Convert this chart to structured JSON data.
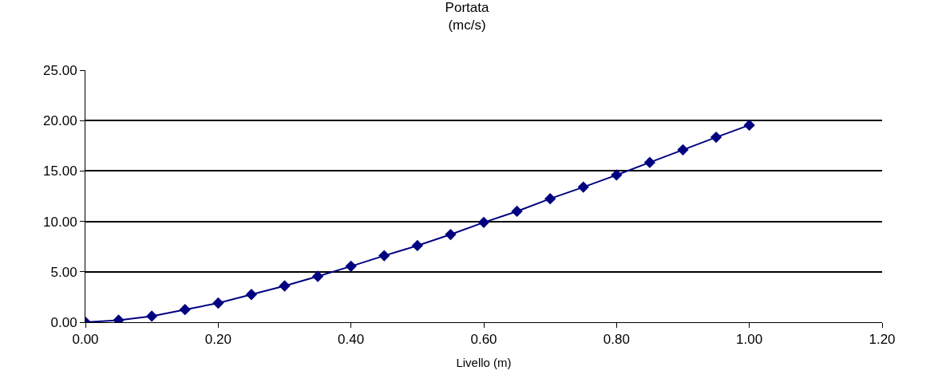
{
  "chart_data": {
    "type": "line",
    "title": "Portata",
    "subtitle": "(mc/s)",
    "xlabel": "Livello (m)",
    "x": [
      0,
      0.05,
      0.1,
      0.15,
      0.2,
      0.25,
      0.3,
      0.35,
      0.4,
      0.45,
      0.5,
      0.55,
      0.6,
      0.65,
      0.7,
      0.75,
      0.8,
      0.85,
      0.9,
      0.95,
      1.0
    ],
    "series": [
      {
        "color": "#000080",
        "values": [
          0,
          0.2,
          0.6,
          1.25,
          1.9,
          2.75,
          3.6,
          4.55,
          5.55,
          6.6,
          7.6,
          8.7,
          9.9,
          11.0,
          12.25,
          13.4,
          14.6,
          15.85,
          17.1,
          18.35,
          19.55
        ]
      }
    ],
    "xlim": [
      0,
      1.2
    ],
    "xticks": [
      {
        "value": 0,
        "label": "0.00"
      },
      {
        "value": 0.2,
        "label": "0.20"
      },
      {
        "value": 0.4,
        "label": "0.40"
      },
      {
        "value": 0.6,
        "label": "0.60"
      },
      {
        "value": 0.8,
        "label": "0.80"
      },
      {
        "value": 1.0,
        "label": "1.00"
      },
      {
        "value": 1.2,
        "label": "1.20"
      }
    ],
    "ylim": [
      0,
      25
    ],
    "yticks": [
      {
        "value": 0,
        "label": "0.00"
      },
      {
        "value": 5,
        "label": "5.00"
      },
      {
        "value": 10,
        "label": "10.00"
      },
      {
        "value": 15,
        "label": "15.00"
      },
      {
        "value": 20,
        "label": "20.00"
      },
      {
        "value": 25,
        "label": "25.00"
      }
    ],
    "grid": "y",
    "legend": false,
    "marker": "diamond",
    "line_style": "solid"
  }
}
